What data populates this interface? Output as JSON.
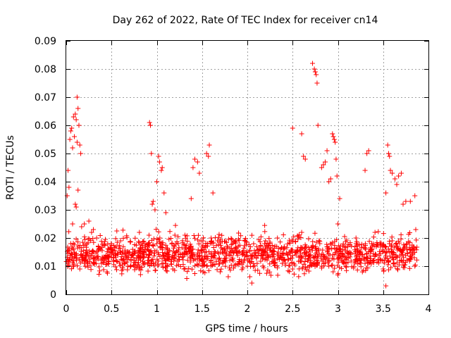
{
  "chart_data": {
    "type": "scatter",
    "title": "Day 262 of 2022, Rate Of TEC Index for receiver cn14",
    "xlabel": "GPS time / hours",
    "ylabel": "ROTI / TECUs",
    "xlim": [
      0,
      4
    ],
    "ylim": [
      0,
      0.09
    ],
    "xticks": [
      0,
      0.5,
      1,
      1.5,
      2,
      2.5,
      3,
      3.5,
      4
    ],
    "xtick_labels": [
      "0",
      "0.5",
      "1",
      "1.5",
      "2",
      "2.5",
      "3",
      "3.5",
      "4"
    ],
    "yticks": [
      0,
      0.01,
      0.02,
      0.03,
      0.04,
      0.05,
      0.06,
      0.07,
      0.08,
      0.09
    ],
    "ytick_labels": [
      "0",
      "0.01",
      "0.02",
      "0.03",
      "0.04",
      "0.05",
      "0.06",
      "0.07",
      "0.08",
      "0.09"
    ],
    "grid": true,
    "marker": "+",
    "color": "#ff0000",
    "series": [
      {
        "name": "ROTI",
        "points": [
          [
            0.01,
            0.035
          ],
          [
            0.02,
            0.044
          ],
          [
            0.03,
            0.038
          ],
          [
            0.04,
            0.055
          ],
          [
            0.05,
            0.058
          ],
          [
            0.06,
            0.059
          ],
          [
            0.07,
            0.052
          ],
          [
            0.08,
            0.063
          ],
          [
            0.09,
            0.056
          ],
          [
            0.1,
            0.064
          ],
          [
            0.11,
            0.062
          ],
          [
            0.12,
            0.054
          ],
          [
            0.12,
            0.07
          ],
          [
            0.13,
            0.066
          ],
          [
            0.14,
            0.06
          ],
          [
            0.15,
            0.053
          ],
          [
            0.16,
            0.05
          ],
          [
            0.1,
            0.032
          ],
          [
            0.11,
            0.031
          ],
          [
            0.13,
            0.037
          ],
          [
            0.07,
            0.025
          ],
          [
            0.17,
            0.024
          ],
          [
            0.2,
            0.025
          ],
          [
            0.25,
            0.026
          ],
          [
            0.28,
            0.022
          ],
          [
            0.3,
            0.023
          ],
          [
            0.92,
            0.061
          ],
          [
            0.93,
            0.06
          ],
          [
            0.94,
            0.05
          ],
          [
            0.95,
            0.032
          ],
          [
            0.96,
            0.033
          ],
          [
            0.98,
            0.03
          ],
          [
            1.0,
            0.04
          ],
          [
            1.02,
            0.049
          ],
          [
            1.03,
            0.047
          ],
          [
            1.05,
            0.044
          ],
          [
            1.06,
            0.045
          ],
          [
            1.08,
            0.036
          ],
          [
            1.1,
            0.029
          ],
          [
            1.38,
            0.034
          ],
          [
            1.4,
            0.045
          ],
          [
            1.42,
            0.048
          ],
          [
            1.45,
            0.047
          ],
          [
            1.47,
            0.043
          ],
          [
            1.55,
            0.05
          ],
          [
            1.57,
            0.049
          ],
          [
            1.58,
            0.053
          ],
          [
            1.62,
            0.036
          ],
          [
            2.5,
            0.059
          ],
          [
            2.6,
            0.057
          ],
          [
            2.62,
            0.049
          ],
          [
            2.64,
            0.048
          ],
          [
            2.72,
            0.082
          ],
          [
            2.74,
            0.08
          ],
          [
            2.75,
            0.079
          ],
          [
            2.76,
            0.078
          ],
          [
            2.77,
            0.075
          ],
          [
            2.78,
            0.06
          ],
          [
            2.82,
            0.045
          ],
          [
            2.84,
            0.046
          ],
          [
            2.86,
            0.047
          ],
          [
            2.88,
            0.051
          ],
          [
            2.9,
            0.04
          ],
          [
            2.92,
            0.041
          ],
          [
            2.94,
            0.057
          ],
          [
            2.95,
            0.056
          ],
          [
            2.96,
            0.055
          ],
          [
            2.97,
            0.054
          ],
          [
            2.98,
            0.048
          ],
          [
            2.99,
            0.042
          ],
          [
            3.02,
            0.034
          ],
          [
            3.3,
            0.044
          ],
          [
            3.32,
            0.05
          ],
          [
            3.34,
            0.051
          ],
          [
            3.53,
            0.036
          ],
          [
            3.55,
            0.053
          ],
          [
            3.56,
            0.05
          ],
          [
            3.57,
            0.049
          ],
          [
            3.58,
            0.044
          ],
          [
            3.6,
            0.043
          ],
          [
            3.63,
            0.041
          ],
          [
            3.65,
            0.039
          ],
          [
            3.67,
            0.042
          ],
          [
            3.7,
            0.043
          ],
          [
            3.72,
            0.032
          ],
          [
            3.75,
            0.033
          ],
          [
            3.8,
            0.033
          ],
          [
            3.85,
            0.035
          ],
          [
            3.86,
            0.023
          ],
          [
            0.05,
            0.018
          ],
          [
            0.08,
            0.012
          ],
          [
            0.15,
            0.009
          ],
          [
            0.22,
            0.014
          ],
          [
            0.3,
            0.011
          ],
          [
            0.38,
            0.016
          ],
          [
            0.45,
            0.008
          ],
          [
            0.52,
            0.013
          ],
          [
            0.6,
            0.019
          ],
          [
            0.68,
            0.01
          ],
          [
            0.75,
            0.015
          ],
          [
            0.82,
            0.007
          ],
          [
            0.9,
            0.012
          ],
          [
            1.0,
            0.018
          ],
          [
            1.1,
            0.011
          ],
          [
            1.2,
            0.021
          ],
          [
            1.3,
            0.009
          ],
          [
            1.4,
            0.016
          ],
          [
            1.5,
            0.012
          ],
          [
            1.6,
            0.02
          ],
          [
            1.7,
            0.008
          ],
          [
            1.8,
            0.014
          ],
          [
            1.9,
            0.017
          ],
          [
            2.0,
            0.01
          ],
          [
            2.05,
            0.004
          ],
          [
            2.1,
            0.013
          ],
          [
            2.2,
            0.019
          ],
          [
            2.3,
            0.011
          ],
          [
            2.4,
            0.016
          ],
          [
            2.5,
            0.009
          ],
          [
            2.6,
            0.022
          ],
          [
            2.7,
            0.012
          ],
          [
            2.8,
            0.018
          ],
          [
            2.9,
            0.01
          ],
          [
            3.0,
            0.025
          ],
          [
            3.1,
            0.013
          ],
          [
            3.2,
            0.02
          ],
          [
            3.3,
            0.011
          ],
          [
            3.4,
            0.017
          ],
          [
            3.5,
            0.009
          ],
          [
            3.53,
            0.003
          ],
          [
            3.6,
            0.019
          ],
          [
            3.7,
            0.012
          ],
          [
            3.8,
            0.016
          ],
          [
            3.85,
            0.01
          ]
        ]
      }
    ],
    "background_cloud": {
      "description_range": "dense band of points between x 0 and 3.88 with y mostly 0.005 to 0.022",
      "x_range": [
        0,
        3.88
      ],
      "y_range": [
        0.004,
        0.025
      ],
      "count": 1400
    }
  }
}
